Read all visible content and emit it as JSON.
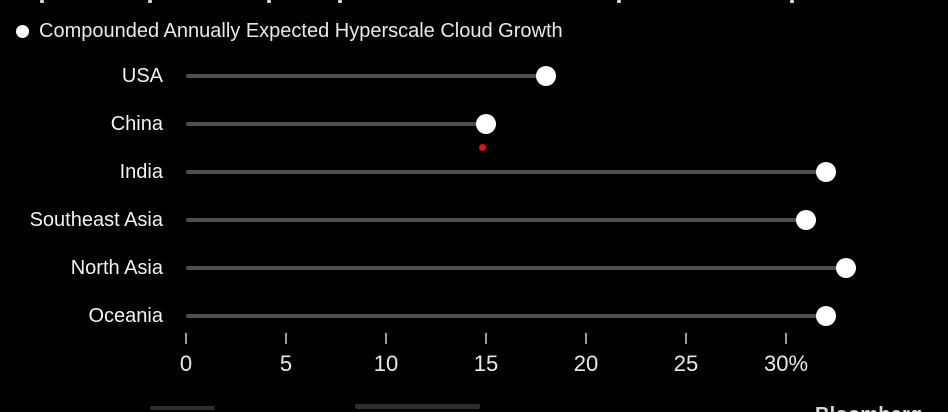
{
  "legend": {
    "marker": "filled-circle",
    "label": "Compounded Annually Expected Hyperscale Cloud Growth"
  },
  "chart_data": {
    "type": "scatter",
    "variant": "horizontal-lollipop-dot-plot",
    "legend": "Compounded Annually Expected Hyperscale Cloud Growth",
    "legend_position": "top-left",
    "categories": [
      "USA",
      "China",
      "India",
      "Southeast Asia",
      "North Asia",
      "Oceania"
    ],
    "values": [
      18,
      15,
      32,
      31,
      33,
      32
    ],
    "value_unit": "percent CAGR",
    "xlabel": "",
    "ylabel": "",
    "xlim": [
      0,
      34
    ],
    "x_ticks": [
      0,
      5,
      10,
      15,
      20,
      25,
      30
    ],
    "x_tick_labels": [
      "0",
      "5",
      "10",
      "15",
      "20",
      "25",
      "30%"
    ],
    "grid": false,
    "annotations": [
      {
        "type": "dot",
        "color": "#e01212",
        "x": 14.8,
        "near_category": "China",
        "placement": "just below China lollipop dot"
      }
    ]
  },
  "colors": {
    "background": "#000000",
    "lollipop_line": "#4e4e4e",
    "data_dot": "#ffffff",
    "text": "#e9e9e9",
    "tick": "#9a9a9a",
    "red_marker": "#e01212"
  },
  "watermark": {
    "label": "Bloomberg"
  }
}
